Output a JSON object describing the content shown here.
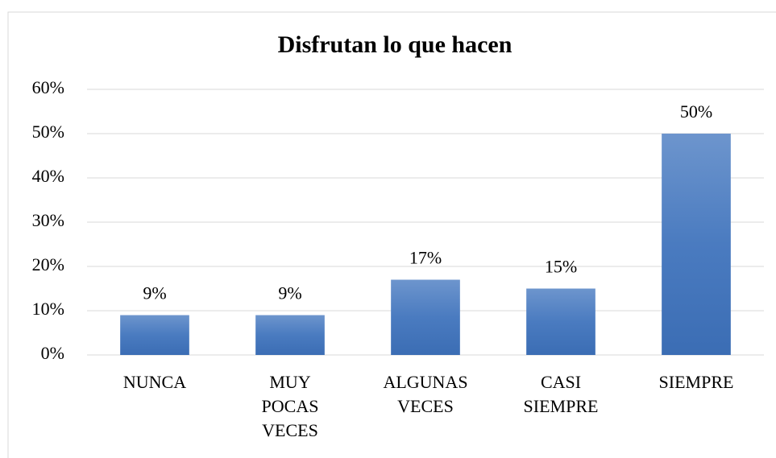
{
  "chart_data": {
    "type": "bar",
    "title": "Disfrutan lo que hacen",
    "categories": [
      "NUNCA",
      "MUY POCAS VECES",
      "ALGUNAS VECES",
      "CASI SIEMPRE",
      "SIEMPRE"
    ],
    "values": [
      9,
      9,
      17,
      15,
      50
    ],
    "value_labels": [
      "9%",
      "9%",
      "17%",
      "15%",
      "50%"
    ],
    "color": "#4a7bc0",
    "ylim": [
      0,
      60
    ],
    "yticks": [
      {
        "value": 0,
        "label": "0%"
      },
      {
        "value": 10,
        "label": "10%"
      },
      {
        "value": 20,
        "label": "20%"
      },
      {
        "value": 30,
        "label": "30%"
      },
      {
        "value": 40,
        "label": "40%"
      },
      {
        "value": 50,
        "label": "50%"
      },
      {
        "value": 60,
        "label": "60%"
      }
    ],
    "grid": true
  }
}
